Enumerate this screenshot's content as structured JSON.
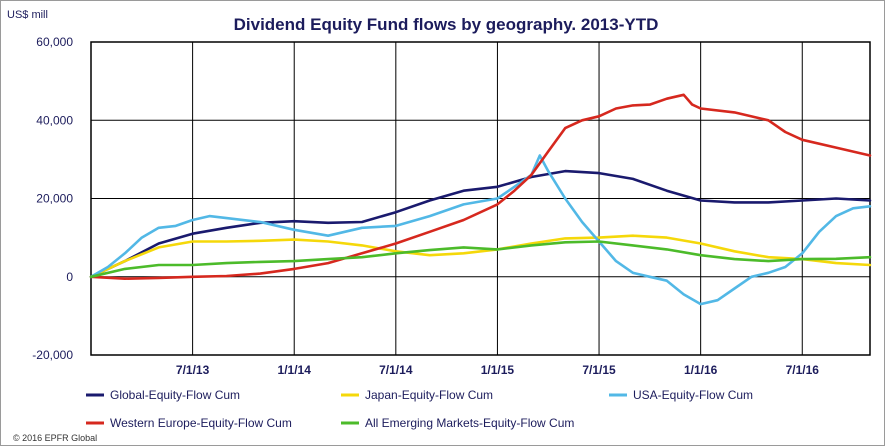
{
  "chart_data": {
    "type": "line",
    "title": "Dividend Equity Fund flows by geography. 2013-YTD",
    "ylabel": "US$ mill",
    "xlabel": "",
    "ylim": [
      -20000,
      60000
    ],
    "yticks": [
      -20000,
      0,
      20000,
      40000,
      60000
    ],
    "ytick_labels": [
      "-20,000",
      "0",
      "20,000",
      "40,000",
      "60,000"
    ],
    "xlim": [
      0,
      46
    ],
    "xticks": [
      6,
      12,
      18,
      24,
      30,
      36,
      42
    ],
    "xtick_labels": [
      "7/1/13",
      "1/1/14",
      "7/1/14",
      "1/1/15",
      "7/1/15",
      "1/1/16",
      "7/1/16"
    ],
    "x_note": "months since 1/1/13",
    "grid": true,
    "legend_position": "bottom",
    "series": [
      {
        "name": "Global-Equity-Flow Cum",
        "color": "#1a1a6e",
        "points": [
          [
            0,
            0
          ],
          [
            2,
            4000
          ],
          [
            4,
            8500
          ],
          [
            6,
            11000
          ],
          [
            8,
            12500
          ],
          [
            10,
            13800
          ],
          [
            12,
            14200
          ],
          [
            14,
            13800
          ],
          [
            16,
            14000
          ],
          [
            18,
            16500
          ],
          [
            20,
            19500
          ],
          [
            22,
            22000
          ],
          [
            24,
            23000
          ],
          [
            26,
            25500
          ],
          [
            28,
            27000
          ],
          [
            30,
            26500
          ],
          [
            32,
            25000
          ],
          [
            34,
            22000
          ],
          [
            36,
            19500
          ],
          [
            38,
            19000
          ],
          [
            40,
            19000
          ],
          [
            42,
            19500
          ],
          [
            44,
            20000
          ],
          [
            46,
            19500
          ]
        ]
      },
      {
        "name": "Japan-Equity-Flow Cum",
        "color": "#f5d80a",
        "points": [
          [
            0,
            0
          ],
          [
            2,
            4000
          ],
          [
            4,
            7500
          ],
          [
            6,
            9000
          ],
          [
            8,
            9000
          ],
          [
            10,
            9200
          ],
          [
            12,
            9500
          ],
          [
            14,
            9000
          ],
          [
            16,
            8000
          ],
          [
            18,
            6500
          ],
          [
            20,
            5500
          ],
          [
            22,
            6000
          ],
          [
            24,
            7000
          ],
          [
            26,
            8500
          ],
          [
            28,
            9800
          ],
          [
            30,
            10000
          ],
          [
            32,
            10500
          ],
          [
            34,
            10000
          ],
          [
            36,
            8500
          ],
          [
            38,
            6500
          ],
          [
            40,
            5000
          ],
          [
            42,
            4500
          ],
          [
            44,
            3500
          ],
          [
            46,
            3000
          ]
        ]
      },
      {
        "name": "USA-Equity-Flow Cum",
        "color": "#52b8e6",
        "points": [
          [
            0,
            0
          ],
          [
            1,
            2500
          ],
          [
            2,
            6000
          ],
          [
            3,
            10000
          ],
          [
            4,
            12500
          ],
          [
            5,
            13000
          ],
          [
            6,
            14500
          ],
          [
            7,
            15500
          ],
          [
            8,
            15000
          ],
          [
            10,
            14000
          ],
          [
            12,
            12000
          ],
          [
            14,
            10500
          ],
          [
            16,
            12500
          ],
          [
            18,
            13000
          ],
          [
            20,
            15500
          ],
          [
            22,
            18500
          ],
          [
            24,
            20000
          ],
          [
            25,
            23000
          ],
          [
            26,
            26000
          ],
          [
            26.5,
            31000
          ],
          [
            27,
            27000
          ],
          [
            28,
            20000
          ],
          [
            29,
            14000
          ],
          [
            30,
            9000
          ],
          [
            31,
            4000
          ],
          [
            32,
            1000
          ],
          [
            33,
            0
          ],
          [
            34,
            -1000
          ],
          [
            35,
            -4500
          ],
          [
            36,
            -7000
          ],
          [
            37,
            -6000
          ],
          [
            38,
            -3000
          ],
          [
            39,
            0
          ],
          [
            40,
            1000
          ],
          [
            41,
            2500
          ],
          [
            42,
            6000
          ],
          [
            43,
            11500
          ],
          [
            44,
            15500
          ],
          [
            45,
            17500
          ],
          [
            46,
            18000
          ]
        ]
      },
      {
        "name": "Western Europe-Equity-Flow Cum",
        "color": "#d6281e",
        "points": [
          [
            0,
            0
          ],
          [
            2,
            -500
          ],
          [
            4,
            -300
          ],
          [
            6,
            0
          ],
          [
            8,
            200
          ],
          [
            10,
            800
          ],
          [
            12,
            2000
          ],
          [
            14,
            3500
          ],
          [
            16,
            6000
          ],
          [
            18,
            8500
          ],
          [
            20,
            11500
          ],
          [
            22,
            14500
          ],
          [
            24,
            18500
          ],
          [
            25,
            22000
          ],
          [
            26,
            26000
          ],
          [
            27,
            32000
          ],
          [
            28,
            38000
          ],
          [
            29,
            40000
          ],
          [
            30,
            41000
          ],
          [
            31,
            43000
          ],
          [
            32,
            43800
          ],
          [
            33,
            44000
          ],
          [
            34,
            45500
          ],
          [
            35,
            46500
          ],
          [
            35.5,
            44000
          ],
          [
            36,
            43000
          ],
          [
            38,
            42000
          ],
          [
            40,
            40000
          ],
          [
            41,
            37000
          ],
          [
            42,
            35000
          ],
          [
            44,
            33000
          ],
          [
            46,
            31000
          ]
        ]
      },
      {
        "name": "All Emerging Markets-Equity-Flow Cum",
        "color": "#4cbb2a",
        "points": [
          [
            0,
            0
          ],
          [
            2,
            2000
          ],
          [
            4,
            3000
          ],
          [
            6,
            3000
          ],
          [
            8,
            3500
          ],
          [
            10,
            3800
          ],
          [
            12,
            4000
          ],
          [
            14,
            4500
          ],
          [
            16,
            5000
          ],
          [
            18,
            6000
          ],
          [
            20,
            6800
          ],
          [
            22,
            7500
          ],
          [
            24,
            7000
          ],
          [
            26,
            8000
          ],
          [
            28,
            8800
          ],
          [
            30,
            9000
          ],
          [
            32,
            8000
          ],
          [
            34,
            7000
          ],
          [
            36,
            5500
          ],
          [
            38,
            4500
          ],
          [
            40,
            4000
          ],
          [
            42,
            4500
          ],
          [
            44,
            4600
          ],
          [
            46,
            5000
          ]
        ]
      }
    ]
  },
  "copyright": "© 2016 EPFR Global"
}
